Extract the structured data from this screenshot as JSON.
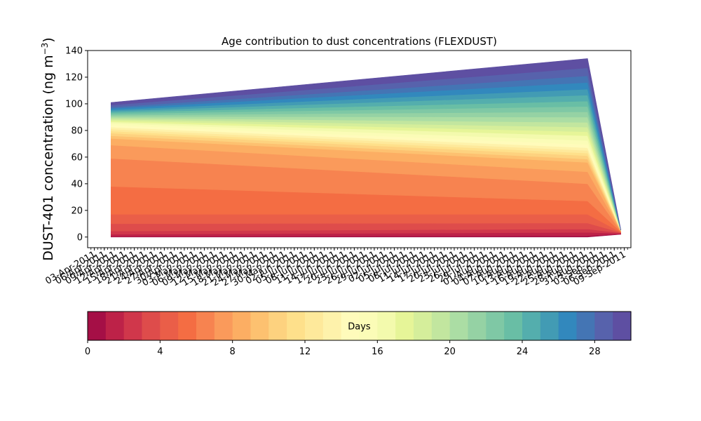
{
  "chart_data": {
    "type": "area",
    "title": "Age contribution to dust concentrations (FLEXDUST)",
    "ylabel": "DUST-401 concentration (ng m",
    "ylabel_sup": "−3",
    "ylabel_close": ")",
    "ylim": [
      -8,
      140
    ],
    "yticks": [
      0,
      20,
      40,
      60,
      80,
      100,
      120,
      140
    ],
    "x_range": [
      "2011-04-01",
      "2011-09-11"
    ],
    "xticks": [
      {
        "date": "2011-04-03",
        "label": "03-Apr-2011"
      },
      {
        "date": "2011-04-06",
        "label": "06-Apr-2011"
      },
      {
        "date": "2011-04-09",
        "label": "09-Apr-2011"
      },
      {
        "date": "2011-04-12",
        "label": "12-Apr-2011"
      },
      {
        "date": "2011-04-15",
        "label": "15-Apr-2011"
      },
      {
        "date": "2011-04-18",
        "label": "18-Apr-2011"
      },
      {
        "date": "2011-04-21",
        "label": "21-Apr-2011"
      },
      {
        "date": "2011-04-24",
        "label": "24-Apr-2011"
      },
      {
        "date": "2011-04-27",
        "label": "27-Apr-2011"
      },
      {
        "date": "2011-04-30",
        "label": "30-Apr-2011"
      },
      {
        "date": "2011-05-03",
        "label": "03-May-2011"
      },
      {
        "date": "2011-05-06",
        "label": "06-May-2011"
      },
      {
        "date": "2011-05-09",
        "label": "09-May-2011"
      },
      {
        "date": "2011-05-12",
        "label": "12-May-2011"
      },
      {
        "date": "2011-05-15",
        "label": "15-May-2011"
      },
      {
        "date": "2011-05-18",
        "label": "18-May-2011"
      },
      {
        "date": "2011-05-21",
        "label": "21-May-2011"
      },
      {
        "date": "2011-05-24",
        "label": "24-May-2011"
      },
      {
        "date": "2011-05-27",
        "label": "27-May-2011"
      },
      {
        "date": "2011-05-30",
        "label": "30-May-2011"
      },
      {
        "date": "2011-06-02",
        "label": "02-Jun-2011"
      },
      {
        "date": "2011-06-05",
        "label": "05-Jun-2011"
      },
      {
        "date": "2011-06-08",
        "label": "08-Jun-2011"
      },
      {
        "date": "2011-06-11",
        "label": "11-Jun-2011"
      },
      {
        "date": "2011-06-14",
        "label": "14-Jun-2011"
      },
      {
        "date": "2011-06-17",
        "label": "17-Jun-2011"
      },
      {
        "date": "2011-06-20",
        "label": "20-Jun-2011"
      },
      {
        "date": "2011-06-23",
        "label": "23-Jun-2011"
      },
      {
        "date": "2011-06-26",
        "label": "26-Jun-2011"
      },
      {
        "date": "2011-06-29",
        "label": "29-Jun-2011"
      },
      {
        "date": "2011-07-02",
        "label": "02-Jul-2011"
      },
      {
        "date": "2011-07-05",
        "label": "05-Jul-2011"
      },
      {
        "date": "2011-07-08",
        "label": "08-Jul-2011"
      },
      {
        "date": "2011-07-11",
        "label": "11-Jul-2011"
      },
      {
        "date": "2011-07-14",
        "label": "14-Jul-2011"
      },
      {
        "date": "2011-07-17",
        "label": "17-Jul-2011"
      },
      {
        "date": "2011-07-20",
        "label": "20-Jul-2011"
      },
      {
        "date": "2011-07-23",
        "label": "23-Jul-2011"
      },
      {
        "date": "2011-07-26",
        "label": "26-Jul-2011"
      },
      {
        "date": "2011-07-29",
        "label": "29-Jul-2011"
      },
      {
        "date": "2011-08-01",
        "label": "01-Aug-2011"
      },
      {
        "date": "2011-08-04",
        "label": "04-Aug-2011"
      },
      {
        "date": "2011-08-07",
        "label": "07-Aug-2011"
      },
      {
        "date": "2011-08-10",
        "label": "10-Aug-2011"
      },
      {
        "date": "2011-08-13",
        "label": "13-Aug-2011"
      },
      {
        "date": "2011-08-16",
        "label": "16-Aug-2011"
      },
      {
        "date": "2011-08-19",
        "label": "19-Aug-2011"
      },
      {
        "date": "2011-08-22",
        "label": "22-Aug-2011"
      },
      {
        "date": "2011-08-25",
        "label": "25-Aug-2011"
      },
      {
        "date": "2011-08-28",
        "label": "28-Aug-2011"
      },
      {
        "date": "2011-08-31",
        "label": "31-Aug-2011"
      },
      {
        "date": "2011-09-03",
        "label": "03-Sep-2011"
      },
      {
        "date": "2011-09-06",
        "label": "06-Sep-2011"
      },
      {
        "date": "2011-09-09",
        "label": "09-Sep-2011"
      }
    ],
    "x": [
      "2011-04-08",
      "2011-08-29",
      "2011-09-08"
    ],
    "cumulative_levels_by_age_day": [
      [
        0.0,
        0.0,
        2.0
      ],
      [
        0.5,
        1.0,
        2.4
      ],
      [
        2.0,
        3.5,
        2.8
      ],
      [
        4.5,
        6.0,
        3.1
      ],
      [
        10.0,
        10.5,
        3.4
      ],
      [
        17.0,
        17.0,
        3.6
      ],
      [
        38.0,
        27.0,
        3.9
      ],
      [
        59.0,
        40.0,
        4.1
      ],
      [
        69.0,
        49.0,
        4.3
      ],
      [
        74.0,
        56.0,
        4.5
      ],
      [
        76.0,
        58.5,
        4.6
      ],
      [
        78.0,
        61.0,
        4.7
      ],
      [
        79.5,
        63.0,
        4.8
      ],
      [
        81.0,
        65.0,
        4.8
      ],
      [
        82.5,
        67.0,
        4.9
      ],
      [
        84.0,
        69.5,
        4.9
      ],
      [
        85.5,
        72.5,
        5.0
      ],
      [
        86.5,
        76.0,
        5.0
      ],
      [
        87.5,
        79.0,
        5.0
      ],
      [
        88.5,
        82.5,
        5.0
      ],
      [
        89.5,
        86.0,
        5.1
      ],
      [
        90.5,
        90.0,
        5.1
      ],
      [
        91.5,
        94.0,
        5.1
      ],
      [
        92.5,
        98.0,
        5.1
      ],
      [
        93.5,
        102.0,
        5.1
      ],
      [
        94.5,
        106.5,
        5.1
      ],
      [
        95.5,
        111.0,
        5.1
      ],
      [
        96.5,
        116.0,
        5.2
      ],
      [
        97.5,
        121.0,
        5.2
      ],
      [
        99.0,
        127.0,
        5.2
      ],
      [
        101.0,
        134.0,
        5.2
      ]
    ],
    "colorbar": {
      "label": "Days",
      "min": 0,
      "max": 30,
      "ticks": [
        0,
        4,
        8,
        12,
        16,
        20,
        24,
        28
      ],
      "colors": [
        "#a50f46",
        "#bd2248",
        "#d0374b",
        "#de4c4b",
        "#ea5e48",
        "#f46d43",
        "#f78350",
        "#fa9a5b",
        "#fcae63",
        "#fdc170",
        "#fdd27f",
        "#fee08b",
        "#fee99b",
        "#fef2ab",
        "#fffbbb",
        "#fbfcb7",
        "#f3faad",
        "#e6f598",
        "#d5ee9b",
        "#c2e69f",
        "#abdda4",
        "#95d2a4",
        "#7fc8a5",
        "#69bea5",
        "#54aead",
        "#429bb4",
        "#3288bd",
        "#4475b4",
        "#5762ac",
        "#5e4fa2"
      ]
    }
  }
}
